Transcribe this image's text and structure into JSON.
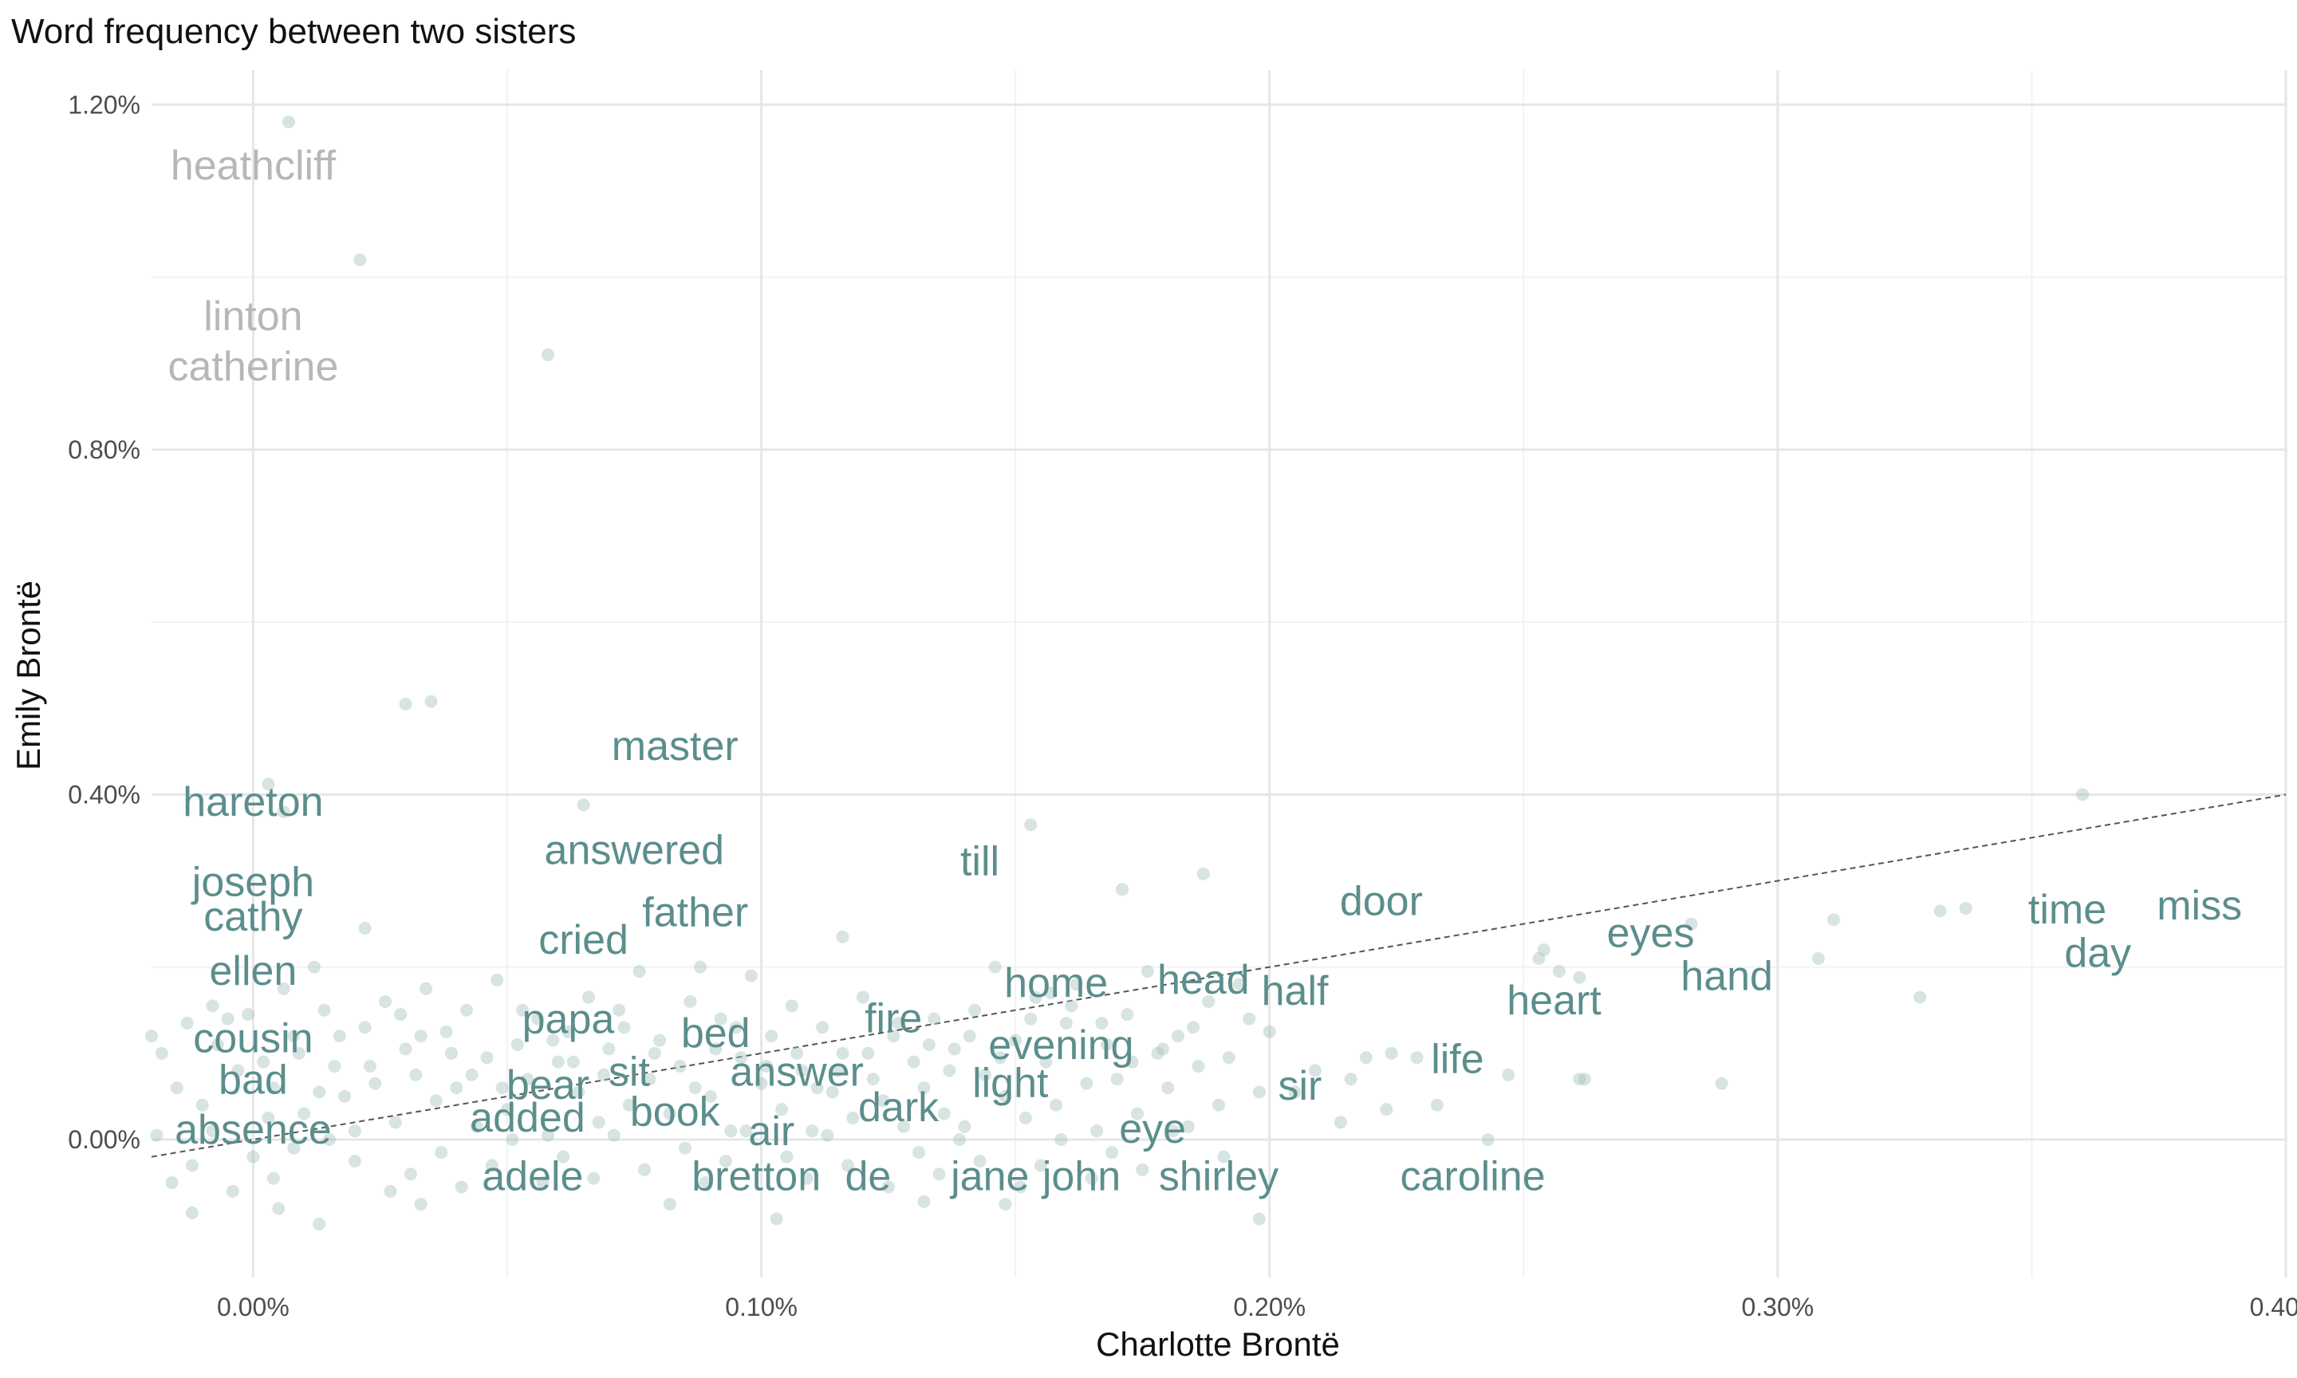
{
  "chart_data": {
    "type": "scatter",
    "title": "Word frequency between two sisters",
    "xlabel": "Charlotte Brontë",
    "ylabel": "Emily Brontë",
    "xlim": [
      -0.02,
      0.4
    ],
    "ylim": [
      -0.16,
      1.24
    ],
    "x_ticks": [
      {
        "value": 0.0,
        "label": "0.00%"
      },
      {
        "value": 0.1,
        "label": "0.10%"
      },
      {
        "value": 0.2,
        "label": "0.20%"
      },
      {
        "value": 0.3,
        "label": "0.30%"
      },
      {
        "value": 0.4,
        "label": "0.40%"
      }
    ],
    "y_ticks": [
      {
        "value": 0.0,
        "label": "0.00%"
      },
      {
        "value": 0.4,
        "label": "0.40%"
      },
      {
        "value": 0.8,
        "label": "0.80%"
      },
      {
        "value": 1.2,
        "label": "1.20%"
      }
    ],
    "grid": true,
    "reference_line": {
      "style": "dashed",
      "points": [
        [
          -0.02,
          -0.02
        ],
        [
          0.4,
          0.4
        ]
      ]
    },
    "colors": {
      "point": "#a7c4bd",
      "label_near": "#5b8e8c",
      "label_far": "#b7b7b7",
      "reference_line": "#555555",
      "grid_major": "#e6e6e6",
      "grid_minor": "#f2f2f2"
    },
    "labels": [
      {
        "word": "heathcliff",
        "x": 0.0,
        "y": 1.13
      },
      {
        "word": "linton",
        "x": 0.0,
        "y": 0.955
      },
      {
        "word": "catherine",
        "x": 0.0,
        "y": 0.897
      },
      {
        "word": "master",
        "x": 0.083,
        "y": 0.457
      },
      {
        "word": "hareton",
        "x": 0.0,
        "y": 0.392
      },
      {
        "word": "answered",
        "x": 0.075,
        "y": 0.336
      },
      {
        "word": "till",
        "x": 0.143,
        "y": 0.323
      },
      {
        "word": "joseph",
        "x": 0.0,
        "y": 0.299
      },
      {
        "word": "door",
        "x": 0.222,
        "y": 0.277
      },
      {
        "word": "cathy",
        "x": 0.0,
        "y": 0.259
      },
      {
        "word": "father",
        "x": 0.087,
        "y": 0.264
      },
      {
        "word": "miss",
        "x": 0.383,
        "y": 0.272
      },
      {
        "word": "time",
        "x": 0.357,
        "y": 0.267
      },
      {
        "word": "eyes",
        "x": 0.275,
        "y": 0.24
      },
      {
        "word": "cried",
        "x": 0.065,
        "y": 0.232
      },
      {
        "word": "day",
        "x": 0.363,
        "y": 0.217
      },
      {
        "word": "ellen",
        "x": 0.0,
        "y": 0.196
      },
      {
        "word": "hand",
        "x": 0.29,
        "y": 0.19
      },
      {
        "word": "home",
        "x": 0.158,
        "y": 0.182
      },
      {
        "word": "head",
        "x": 0.187,
        "y": 0.186
      },
      {
        "word": "half",
        "x": 0.205,
        "y": 0.173
      },
      {
        "word": "heart",
        "x": 0.256,
        "y": 0.162
      },
      {
        "word": "papa",
        "x": 0.062,
        "y": 0.14
      },
      {
        "word": "fire",
        "x": 0.126,
        "y": 0.141
      },
      {
        "word": "bed",
        "x": 0.091,
        "y": 0.124
      },
      {
        "word": "cousin",
        "x": 0.0,
        "y": 0.118
      },
      {
        "word": "evening",
        "x": 0.159,
        "y": 0.11
      },
      {
        "word": "life",
        "x": 0.237,
        "y": 0.094
      },
      {
        "word": "sit",
        "x": 0.074,
        "y": 0.079
      },
      {
        "word": "answer",
        "x": 0.107,
        "y": 0.079
      },
      {
        "word": "bad",
        "x": 0.0,
        "y": 0.07
      },
      {
        "word": "bear",
        "x": 0.058,
        "y": 0.064
      },
      {
        "word": "light",
        "x": 0.149,
        "y": 0.066
      },
      {
        "word": "sir",
        "x": 0.206,
        "y": 0.063
      },
      {
        "word": "dark",
        "x": 0.127,
        "y": 0.038
      },
      {
        "word": "book",
        "x": 0.083,
        "y": 0.033
      },
      {
        "word": "added",
        "x": 0.054,
        "y": 0.026
      },
      {
        "word": "eye",
        "x": 0.177,
        "y": 0.013
      },
      {
        "word": "absence",
        "x": 0.0,
        "y": 0.012
      },
      {
        "word": "air",
        "x": 0.102,
        "y": 0.01
      },
      {
        "word": "adele",
        "x": 0.055,
        "y": -0.042
      },
      {
        "word": "bretton",
        "x": 0.099,
        "y": -0.042
      },
      {
        "word": "de",
        "x": 0.121,
        "y": -0.042
      },
      {
        "word": "jane",
        "x": 0.145,
        "y": -0.042
      },
      {
        "word": "john",
        "x": 0.163,
        "y": -0.042
      },
      {
        "word": "shirley",
        "x": 0.19,
        "y": -0.042
      },
      {
        "word": "caroline",
        "x": 0.24,
        "y": -0.042
      }
    ],
    "points": [
      [
        0.007,
        1.18
      ],
      [
        0.021,
        1.02
      ],
      [
        0.058,
        0.91
      ],
      [
        0.03,
        0.505
      ],
      [
        0.035,
        0.508
      ],
      [
        0.065,
        0.388
      ],
      [
        0.153,
        0.365
      ],
      [
        0.36,
        0.4
      ],
      [
        0.187,
        0.308
      ],
      [
        0.171,
        0.29
      ],
      [
        0.003,
        0.412
      ],
      [
        0.006,
        0.38
      ],
      [
        0.337,
        0.268
      ],
      [
        0.332,
        0.265
      ],
      [
        0.311,
        0.255
      ],
      [
        0.283,
        0.25
      ],
      [
        0.308,
        0.21
      ],
      [
        0.328,
        0.165
      ],
      [
        0.116,
        0.235
      ],
      [
        0.022,
        0.245
      ],
      [
        0.253,
        0.21
      ],
      [
        0.257,
        0.195
      ],
      [
        0.261,
        0.188
      ],
      [
        0.289,
        0.065
      ],
      [
        0.261,
        0.07
      ],
      [
        0.247,
        0.075
      ],
      [
        0.224,
        0.1
      ],
      [
        0.219,
        0.095
      ],
      [
        0.243,
        0.0
      ],
      [
        0.198,
        -0.092
      ],
      [
        0.013,
        -0.098
      ],
      [
        -0.012,
        -0.085
      ],
      [
        0.005,
        -0.08
      ],
      [
        0.033,
        -0.075
      ],
      [
        0.082,
        -0.075
      ],
      [
        0.103,
        -0.092
      ],
      [
        0.132,
        -0.072
      ],
      [
        0.148,
        -0.075
      ],
      [
        -0.02,
        0.12
      ],
      [
        -0.018,
        0.1
      ],
      [
        -0.015,
        0.06
      ],
      [
        -0.01,
        0.04
      ],
      [
        -0.008,
        0.155
      ],
      [
        -0.005,
        0.14
      ],
      [
        -0.003,
        0.08
      ],
      [
        0.002,
        0.09
      ],
      [
        0.004,
        0.06
      ],
      [
        0.006,
        0.175
      ],
      [
        0.008,
        0.12
      ],
      [
        0.01,
        0.03
      ],
      [
        0.012,
        0.2
      ],
      [
        0.014,
        0.15
      ],
      [
        0.016,
        0.085
      ],
      [
        0.018,
        0.05
      ],
      [
        0.02,
        0.01
      ],
      [
        0.022,
        0.13
      ],
      [
        0.024,
        0.065
      ],
      [
        0.026,
        0.16
      ],
      [
        0.028,
        0.02
      ],
      [
        0.03,
        0.105
      ],
      [
        0.032,
        0.075
      ],
      [
        0.034,
        0.175
      ],
      [
        0.036,
        0.045
      ],
      [
        0.038,
        0.125
      ],
      [
        0.04,
        0.06
      ],
      [
        0.042,
        0.15
      ],
      [
        0.044,
        0.015
      ],
      [
        0.046,
        0.095
      ],
      [
        0.048,
        0.185
      ],
      [
        0.05,
        0.035
      ],
      [
        0.052,
        0.11
      ],
      [
        0.054,
        0.07
      ],
      [
        0.056,
        0.14
      ],
      [
        0.058,
        0.005
      ],
      [
        0.06,
        0.09
      ],
      [
        0.062,
        0.125
      ],
      [
        0.064,
        0.055
      ],
      [
        0.066,
        0.165
      ],
      [
        0.068,
        0.02
      ],
      [
        0.07,
        0.105
      ],
      [
        0.072,
        0.15
      ],
      [
        0.074,
        0.04
      ],
      [
        0.076,
        0.195
      ],
      [
        0.078,
        0.07
      ],
      [
        0.08,
        0.115
      ],
      [
        0.082,
        0.03
      ],
      [
        0.084,
        0.085
      ],
      [
        0.086,
        0.16
      ],
      [
        0.088,
        0.2
      ],
      [
        0.09,
        0.05
      ],
      [
        0.092,
        0.14
      ],
      [
        0.094,
        0.01
      ],
      [
        0.096,
        0.095
      ],
      [
        0.098,
        0.19
      ],
      [
        0.1,
        0.065
      ],
      [
        0.102,
        0.12
      ],
      [
        0.104,
        0.035
      ],
      [
        0.106,
        0.155
      ],
      [
        0.108,
        0.08
      ],
      [
        0.11,
        0.01
      ],
      [
        0.112,
        0.13
      ],
      [
        0.114,
        0.055
      ],
      [
        0.116,
        0.1
      ],
      [
        0.118,
        0.025
      ],
      [
        0.12,
        0.165
      ],
      [
        0.122,
        0.07
      ],
      [
        0.124,
        0.045
      ],
      [
        0.126,
        0.12
      ],
      [
        0.128,
        0.015
      ],
      [
        0.13,
        0.09
      ],
      [
        0.132,
        0.06
      ],
      [
        0.134,
        0.14
      ],
      [
        0.136,
        0.03
      ],
      [
        0.138,
        0.105
      ],
      [
        0.14,
        0.015
      ],
      [
        0.142,
        0.15
      ],
      [
        0.144,
        0.075
      ],
      [
        0.146,
        0.2
      ],
      [
        0.148,
        0.05
      ],
      [
        0.15,
        0.115
      ],
      [
        0.152,
        0.025
      ],
      [
        0.154,
        0.165
      ],
      [
        0.156,
        0.09
      ],
      [
        0.158,
        0.04
      ],
      [
        0.16,
        0.135
      ],
      [
        0.162,
        0.18
      ],
      [
        0.164,
        0.065
      ],
      [
        0.166,
        0.01
      ],
      [
        0.168,
        0.11
      ],
      [
        0.17,
        0.07
      ],
      [
        0.172,
        0.145
      ],
      [
        0.174,
        0.03
      ],
      [
        0.176,
        0.195
      ],
      [
        0.178,
        0.1
      ],
      [
        0.18,
        0.06
      ],
      [
        0.182,
        0.12
      ],
      [
        0.184,
        0.015
      ],
      [
        0.186,
        0.085
      ],
      [
        0.188,
        0.16
      ],
      [
        0.19,
        0.04
      ],
      [
        0.192,
        0.095
      ],
      [
        0.194,
        0.18
      ],
      [
        0.196,
        0.14
      ],
      [
        0.198,
        0.055
      ],
      [
        0.2,
        0.125
      ],
      [
        0.209,
        0.08
      ],
      [
        0.214,
        0.02
      ],
      [
        0.229,
        0.095
      ],
      [
        0.233,
        0.04
      ],
      [
        0.223,
        0.035
      ],
      [
        0.254,
        0.22
      ],
      [
        0.262,
        0.07
      ],
      [
        -0.016,
        -0.05
      ],
      [
        -0.012,
        -0.03
      ],
      [
        -0.008,
        0.01
      ],
      [
        -0.004,
        -0.06
      ],
      [
        0.0,
        -0.02
      ],
      [
        0.004,
        -0.045
      ],
      [
        0.008,
        -0.01
      ],
      [
        0.015,
        0.0
      ],
      [
        0.02,
        -0.025
      ],
      [
        0.027,
        -0.06
      ],
      [
        0.031,
        -0.04
      ],
      [
        0.037,
        -0.015
      ],
      [
        0.041,
        -0.055
      ],
      [
        0.047,
        -0.03
      ],
      [
        0.051,
        0.0
      ],
      [
        0.057,
        -0.05
      ],
      [
        0.061,
        -0.02
      ],
      [
        0.067,
        -0.045
      ],
      [
        0.071,
        0.005
      ],
      [
        0.077,
        -0.035
      ],
      [
        0.085,
        -0.01
      ],
      [
        0.089,
        -0.05
      ],
      [
        0.093,
        -0.025
      ],
      [
        0.097,
        0.01
      ],
      [
        0.105,
        -0.02
      ],
      [
        0.109,
        -0.045
      ],
      [
        0.113,
        0.005
      ],
      [
        0.117,
        -0.03
      ],
      [
        0.125,
        -0.055
      ],
      [
        0.131,
        -0.015
      ],
      [
        0.135,
        -0.04
      ],
      [
        0.139,
        0.0
      ],
      [
        0.143,
        -0.025
      ],
      [
        0.151,
        -0.055
      ],
      [
        0.155,
        -0.03
      ],
      [
        0.159,
        0.0
      ],
      [
        0.165,
        -0.045
      ],
      [
        0.169,
        -0.015
      ],
      [
        0.175,
        -0.035
      ],
      [
        0.181,
        0.01
      ],
      [
        0.191,
        -0.02
      ],
      [
        0.205,
        0.055
      ],
      [
        0.216,
        0.07
      ],
      [
        -0.019,
        0.005
      ],
      [
        -0.013,
        0.135
      ],
      [
        -0.007,
        0.11
      ],
      [
        -0.001,
        0.145
      ],
      [
        0.003,
        0.025
      ],
      [
        0.009,
        0.1
      ],
      [
        0.013,
        0.055
      ],
      [
        0.017,
        0.12
      ],
      [
        0.023,
        0.085
      ],
      [
        0.029,
        0.145
      ],
      [
        0.033,
        0.12
      ],
      [
        0.039,
        0.1
      ],
      [
        0.043,
        0.075
      ],
      [
        0.049,
        0.06
      ],
      [
        0.053,
        0.15
      ],
      [
        0.059,
        0.115
      ],
      [
        0.063,
        0.09
      ],
      [
        0.069,
        0.075
      ],
      [
        0.073,
        0.13
      ],
      [
        0.079,
        0.1
      ],
      [
        0.087,
        0.06
      ],
      [
        0.091,
        0.105
      ],
      [
        0.095,
        0.13
      ],
      [
        0.101,
        0.085
      ],
      [
        0.107,
        0.1
      ],
      [
        0.111,
        0.06
      ],
      [
        0.115,
        0.08
      ],
      [
        0.121,
        0.1
      ],
      [
        0.127,
        0.135
      ],
      [
        0.133,
        0.11
      ],
      [
        0.137,
        0.08
      ],
      [
        0.141,
        0.12
      ],
      [
        0.147,
        0.095
      ],
      [
        0.153,
        0.14
      ],
      [
        0.157,
        0.17
      ],
      [
        0.161,
        0.155
      ],
      [
        0.167,
        0.135
      ],
      [
        0.173,
        0.09
      ],
      [
        0.179,
        0.105
      ],
      [
        0.185,
        0.13
      ]
    ]
  }
}
